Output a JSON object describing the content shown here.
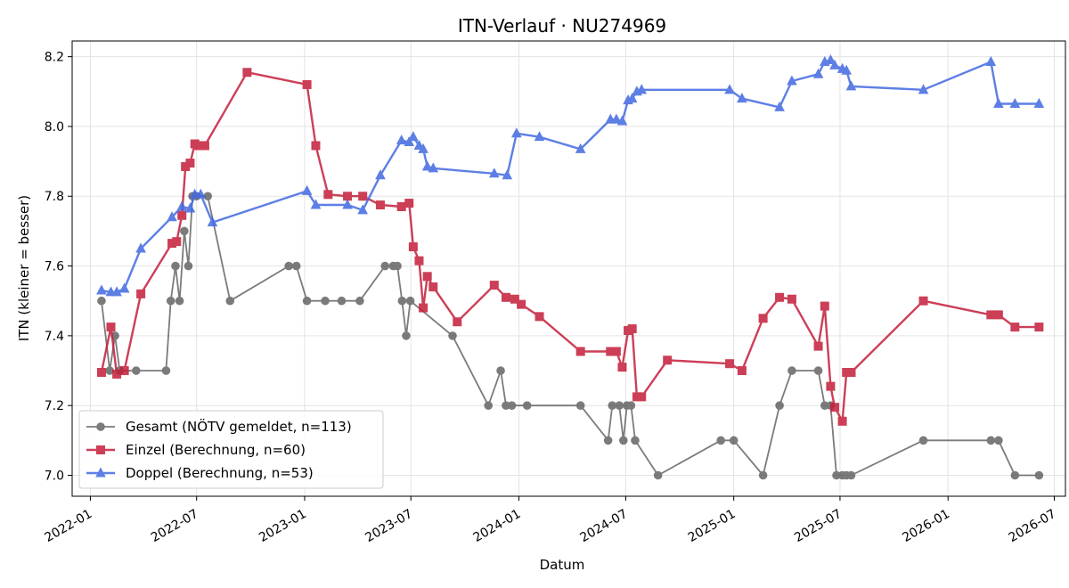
{
  "chart_data": {
    "type": "line",
    "title": "ITN-Verlauf · NU274969",
    "xlabel": "Datum",
    "ylabel": "ITN  (kleiner = besser)",
    "x_ticks": [
      "2022-01",
      "2022-07",
      "2023-01",
      "2023-07",
      "2024-01",
      "2024-07",
      "2025-01",
      "2025-07",
      "2026-01",
      "2026-07"
    ],
    "y_ticks": [
      "7.0",
      "7.2",
      "7.4",
      "7.6",
      "7.8",
      "8.0",
      "8.2"
    ],
    "xlim": [
      "2021-12-01",
      "2026-07-20"
    ],
    "ylim": [
      6.94,
      8.245
    ],
    "grid": true,
    "legend_position": "lower-left",
    "series": [
      {
        "name": "Gesamt (NÖTV gemeldet, n=113)",
        "color": "#444444",
        "marker": "circle",
        "points": [
          [
            "2022-01-20",
            7.5
          ],
          [
            "2022-02-03",
            7.3
          ],
          [
            "2022-02-12",
            7.4
          ],
          [
            "2022-02-20",
            7.3
          ],
          [
            "2022-03-20",
            7.3
          ],
          [
            "2022-05-10",
            7.3
          ],
          [
            "2022-05-18",
            7.5
          ],
          [
            "2022-05-26",
            7.6
          ],
          [
            "2022-06-02",
            7.5
          ],
          [
            "2022-06-10",
            7.7
          ],
          [
            "2022-06-17",
            7.6
          ],
          [
            "2022-06-24",
            7.8
          ],
          [
            "2022-07-01",
            7.8
          ],
          [
            "2022-07-20",
            7.8
          ],
          [
            "2022-08-27",
            7.5
          ],
          [
            "2022-12-05",
            7.6
          ],
          [
            "2022-12-18",
            7.6
          ],
          [
            "2023-01-05",
            7.5
          ],
          [
            "2023-02-05",
            7.5
          ],
          [
            "2023-03-05",
            7.5
          ],
          [
            "2023-04-05",
            7.5
          ],
          [
            "2023-05-18",
            7.6
          ],
          [
            "2023-06-01",
            7.6
          ],
          [
            "2023-06-08",
            7.6
          ],
          [
            "2023-06-16",
            7.5
          ],
          [
            "2023-06-23",
            7.4
          ],
          [
            "2023-06-30",
            7.5
          ],
          [
            "2023-09-10",
            7.4
          ],
          [
            "2023-11-10",
            7.2
          ],
          [
            "2023-12-01",
            7.3
          ],
          [
            "2023-12-10",
            7.2
          ],
          [
            "2023-12-20",
            7.2
          ],
          [
            "2024-01-15",
            7.2
          ],
          [
            "2024-04-15",
            7.2
          ],
          [
            "2024-06-01",
            7.1
          ],
          [
            "2024-06-08",
            7.2
          ],
          [
            "2024-06-20",
            7.2
          ],
          [
            "2024-06-27",
            7.1
          ],
          [
            "2024-07-03",
            7.2
          ],
          [
            "2024-07-10",
            7.2
          ],
          [
            "2024-07-17",
            7.1
          ],
          [
            "2024-08-25",
            7.0
          ],
          [
            "2024-12-10",
            7.1
          ],
          [
            "2025-01-01",
            7.1
          ],
          [
            "2025-02-20",
            7.0
          ],
          [
            "2025-03-20",
            7.2
          ],
          [
            "2025-04-10",
            7.3
          ],
          [
            "2025-05-25",
            7.3
          ],
          [
            "2025-06-05",
            7.2
          ],
          [
            "2025-06-15",
            7.2
          ],
          [
            "2025-06-25",
            7.0
          ],
          [
            "2025-07-05",
            7.0
          ],
          [
            "2025-07-12",
            7.0
          ],
          [
            "2025-07-20",
            7.0
          ],
          [
            "2025-11-20",
            7.1
          ],
          [
            "2026-03-15",
            7.1
          ],
          [
            "2026-03-28",
            7.1
          ],
          [
            "2026-04-25",
            7.0
          ],
          [
            "2026-06-05",
            7.0
          ]
        ]
      },
      {
        "name": "Einzel (Berechnung, n=60)",
        "color": "#c41e3a",
        "marker": "square",
        "points": [
          [
            "2022-01-20",
            7.295
          ],
          [
            "2022-02-05",
            7.425
          ],
          [
            "2022-02-15",
            7.29
          ],
          [
            "2022-02-28",
            7.3
          ],
          [
            "2022-03-28",
            7.52
          ],
          [
            "2022-05-20",
            7.665
          ],
          [
            "2022-05-28",
            7.67
          ],
          [
            "2022-06-06",
            7.745
          ],
          [
            "2022-06-12",
            7.885
          ],
          [
            "2022-06-20",
            7.895
          ],
          [
            "2022-06-28",
            7.95
          ],
          [
            "2022-07-05",
            7.945
          ],
          [
            "2022-07-15",
            7.945
          ],
          [
            "2022-09-25",
            8.155
          ],
          [
            "2023-01-05",
            8.12
          ],
          [
            "2023-01-20",
            7.945
          ],
          [
            "2023-02-10",
            7.805
          ],
          [
            "2023-03-15",
            7.8
          ],
          [
            "2023-04-10",
            7.8
          ],
          [
            "2023-05-10",
            7.775
          ],
          [
            "2023-06-15",
            7.77
          ],
          [
            "2023-06-28",
            7.78
          ],
          [
            "2023-07-05",
            7.655
          ],
          [
            "2023-07-15",
            7.615
          ],
          [
            "2023-07-22",
            7.48
          ],
          [
            "2023-07-29",
            7.57
          ],
          [
            "2023-08-08",
            7.54
          ],
          [
            "2023-09-18",
            7.44
          ],
          [
            "2023-11-20",
            7.545
          ],
          [
            "2023-12-10",
            7.51
          ],
          [
            "2023-12-25",
            7.505
          ],
          [
            "2024-01-05",
            7.49
          ],
          [
            "2024-02-05",
            7.455
          ],
          [
            "2024-04-15",
            7.355
          ],
          [
            "2024-06-05",
            7.355
          ],
          [
            "2024-06-15",
            7.355
          ],
          [
            "2024-06-25",
            7.31
          ],
          [
            "2024-07-05",
            7.415
          ],
          [
            "2024-07-12",
            7.42
          ],
          [
            "2024-07-20",
            7.225
          ],
          [
            "2024-07-28",
            7.225
          ],
          [
            "2024-09-10",
            7.33
          ],
          [
            "2024-12-25",
            7.32
          ],
          [
            "2025-01-15",
            7.3
          ],
          [
            "2025-02-20",
            7.45
          ],
          [
            "2025-03-20",
            7.51
          ],
          [
            "2025-04-10",
            7.505
          ],
          [
            "2025-05-25",
            7.37
          ],
          [
            "2025-06-05",
            7.485
          ],
          [
            "2025-06-15",
            7.255
          ],
          [
            "2025-06-22",
            7.195
          ],
          [
            "2025-07-05",
            7.155
          ],
          [
            "2025-07-12",
            7.295
          ],
          [
            "2025-07-20",
            7.295
          ],
          [
            "2025-11-20",
            7.5
          ],
          [
            "2026-03-15",
            7.46
          ],
          [
            "2026-03-28",
            7.46
          ],
          [
            "2026-04-25",
            7.425
          ],
          [
            "2026-06-05",
            7.425
          ]
        ]
      },
      {
        "name": "Doppel (Berechnung, n=53)",
        "color": "#4169e1",
        "marker": "triangle",
        "points": [
          [
            "2022-01-20",
            7.53
          ],
          [
            "2022-02-05",
            7.525
          ],
          [
            "2022-02-15",
            7.525
          ],
          [
            "2022-02-28",
            7.535
          ],
          [
            "2022-03-28",
            7.65
          ],
          [
            "2022-05-20",
            7.74
          ],
          [
            "2022-06-06",
            7.77
          ],
          [
            "2022-06-20",
            7.765
          ],
          [
            "2022-06-28",
            7.805
          ],
          [
            "2022-07-08",
            7.805
          ],
          [
            "2022-07-28",
            7.725
          ],
          [
            "2023-01-05",
            7.815
          ],
          [
            "2023-01-20",
            7.775
          ],
          [
            "2023-03-15",
            7.775
          ],
          [
            "2023-04-10",
            7.76
          ],
          [
            "2023-05-10",
            7.86
          ],
          [
            "2023-06-15",
            7.96
          ],
          [
            "2023-06-28",
            7.955
          ],
          [
            "2023-07-05",
            7.97
          ],
          [
            "2023-07-15",
            7.945
          ],
          [
            "2023-07-22",
            7.935
          ],
          [
            "2023-07-29",
            7.885
          ],
          [
            "2023-08-08",
            7.88
          ],
          [
            "2023-11-20",
            7.865
          ],
          [
            "2023-12-12",
            7.86
          ],
          [
            "2023-12-28",
            7.98
          ],
          [
            "2024-02-05",
            7.97
          ],
          [
            "2024-04-15",
            7.935
          ],
          [
            "2024-06-05",
            8.02
          ],
          [
            "2024-06-15",
            8.02
          ],
          [
            "2024-06-25",
            8.015
          ],
          [
            "2024-07-05",
            8.075
          ],
          [
            "2024-07-12",
            8.08
          ],
          [
            "2024-07-20",
            8.1
          ],
          [
            "2024-07-28",
            8.105
          ],
          [
            "2024-12-25",
            8.105
          ],
          [
            "2025-01-15",
            8.08
          ],
          [
            "2025-03-20",
            8.055
          ],
          [
            "2025-04-10",
            8.13
          ],
          [
            "2025-05-25",
            8.15
          ],
          [
            "2025-06-05",
            8.185
          ],
          [
            "2025-06-15",
            8.19
          ],
          [
            "2025-06-22",
            8.175
          ],
          [
            "2025-07-05",
            8.165
          ],
          [
            "2025-07-12",
            8.16
          ],
          [
            "2025-07-20",
            8.115
          ],
          [
            "2025-11-20",
            8.105
          ],
          [
            "2026-03-15",
            8.185
          ],
          [
            "2026-03-28",
            8.065
          ],
          [
            "2026-04-25",
            8.065
          ],
          [
            "2026-06-05",
            8.065
          ]
        ]
      }
    ]
  }
}
